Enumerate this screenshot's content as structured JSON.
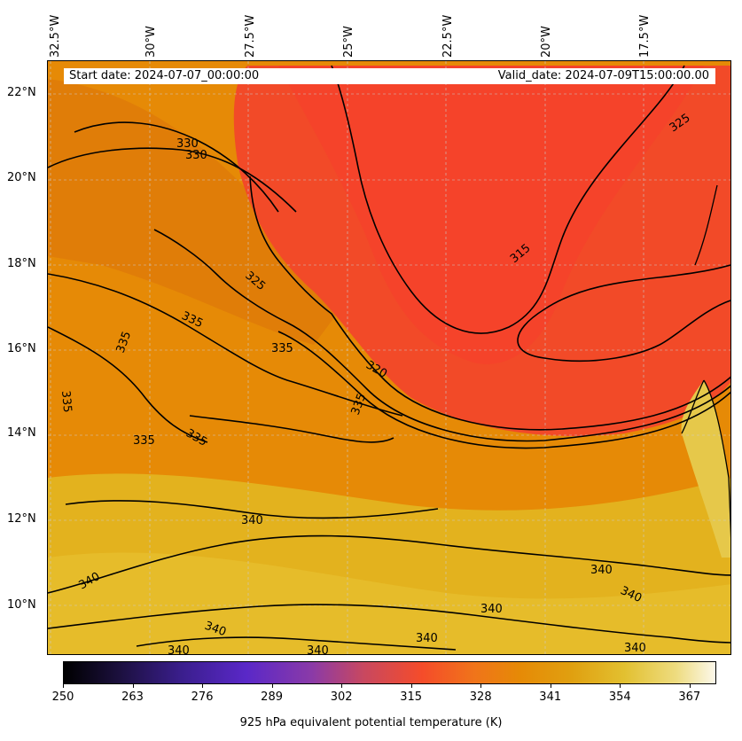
{
  "info": {
    "start_date": "Start date: 2024-07-07_00:00:00",
    "valid_date": "Valid_date: 2024-07-09T15:00:00.00"
  },
  "longitude_labels": [
    "32.5°W",
    "30°W",
    "27.5°W",
    "25°W",
    "22.5°W",
    "20°W",
    "17.5°W"
  ],
  "latitude_labels": [
    "22°N",
    "20°N",
    "18°N",
    "16°N",
    "14°N",
    "12°N",
    "10°N"
  ],
  "contour_labels": [
    "330",
    "330",
    "325",
    "325",
    "335",
    "335",
    "335",
    "335",
    "335",
    "335",
    "335",
    "320",
    "315",
    "340",
    "340",
    "340",
    "340",
    "340",
    "340",
    "340",
    "340",
    "340",
    "340"
  ],
  "colorbar": {
    "title": "925 hPa equivalent potential temperature (K)",
    "ticks": [
      "250",
      "263",
      "276",
      "289",
      "302",
      "315",
      "328",
      "341",
      "354",
      "367"
    ],
    "range": [
      250,
      372
    ],
    "colors": [
      "#000000",
      "#3a1e8c",
      "#5a28c8",
      "#c84860",
      "#f54c2a",
      "#e68a06",
      "#e2c030",
      "#fcf8ea"
    ]
  },
  "map_colors": {
    "warm_band": "#e68a06",
    "cool_core": "#f5472a",
    "moist_south": "#e6b020"
  }
}
